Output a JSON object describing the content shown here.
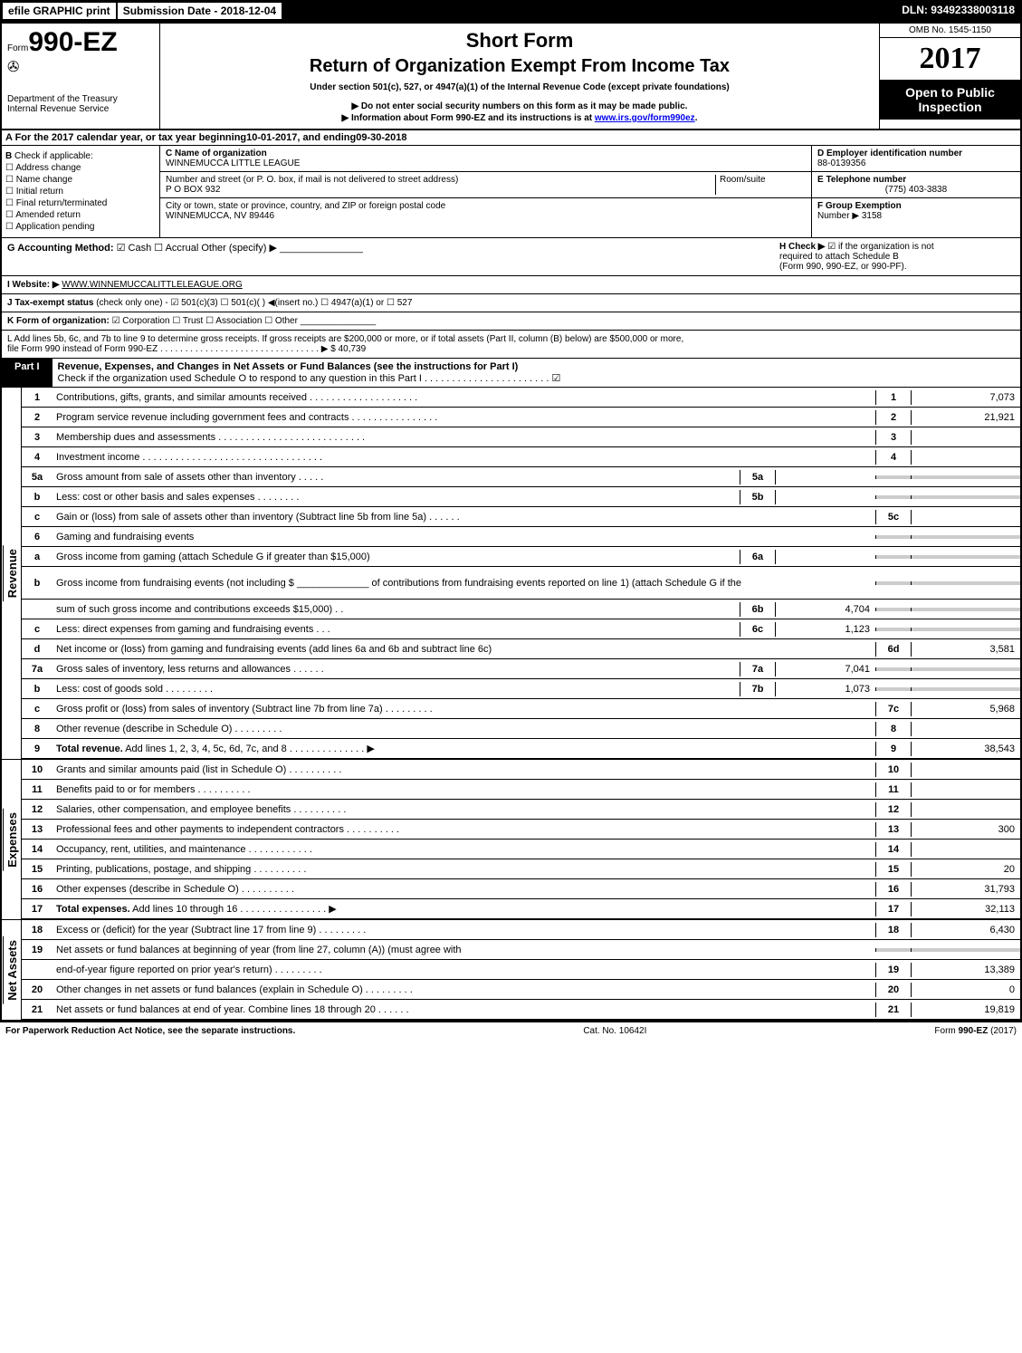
{
  "topbar": {
    "efile": "efile GRAPHIC print",
    "subdate": "Submission Date - 2018-12-04",
    "dln": "DLN: 93492338003118"
  },
  "header": {
    "form_prefix": "Form",
    "form_number": "990-EZ",
    "dept1": "Department of the Treasury",
    "dept2": "Internal Revenue Service",
    "short_form": "Short Form",
    "return_title": "Return of Organization Exempt From Income Tax",
    "under_section": "Under section 501(c), 527, or 4947(a)(1) of the Internal Revenue Code (except private foundations)",
    "notice1": "▶ Do not enter social security numbers on this form as it may be made public.",
    "notice2_prefix": "▶ Information about Form 990-EZ and its instructions is at ",
    "notice2_link": "www.irs.gov/form990ez",
    "omb": "OMB No. 1545-1150",
    "year": "2017",
    "open1": "Open to Public",
    "open2": "Inspection"
  },
  "line_a": {
    "prefix": "A  For the 2017 calendar year, or tax year beginning ",
    "begin": "10-01-2017",
    "mid": ", and ending ",
    "end": "09-30-2018"
  },
  "section_b": {
    "b_label": "B",
    "check_label": "Check if applicable:",
    "addr_change": "Address change",
    "name_change": "Name change",
    "initial": "Initial return",
    "final": "Final return/terminated",
    "amended": "Amended return",
    "pending": "Application pending"
  },
  "section_c": {
    "c_label": "C Name of organization",
    "org_name": "WINNEMUCCA LITTLE LEAGUE",
    "street_label": "Number and street (or P. O. box, if mail is not delivered to street address)",
    "room_label": "Room/suite",
    "street": "P O BOX 932",
    "city_label": "City or town, state or province, country, and ZIP or foreign postal code",
    "city": "WINNEMUCCA, NV  89446"
  },
  "section_def": {
    "d_label": "D Employer identification number",
    "ein": "88-0139356",
    "e_label": "E Telephone number",
    "phone": "(775) 403-3838",
    "f_label": "F Group Exemption",
    "f_number_label": "Number ▶",
    "f_number": "3158"
  },
  "line_g": {
    "g_label": "G Accounting Method:",
    "cash": "Cash",
    "accrual": "Accrual",
    "other": "Other (specify) ▶",
    "h_label": "H  Check ▶",
    "h_text1": "if the organization is not",
    "h_text2": "required to attach Schedule B",
    "h_text3": "(Form 990, 990-EZ, or 990-PF)."
  },
  "line_i": {
    "i_label": "I Website: ▶",
    "website": "WWW.WINNEMUCCALITTLELEAGUE.ORG"
  },
  "line_j": {
    "j_label": "J Tax-exempt status",
    "j_text": "(check only one) - ☑ 501(c)(3)  ☐ 501(c)(  ) ◀(insert no.)  ☐ 4947(a)(1) or  ☐ 527"
  },
  "line_k": {
    "k_label": "K Form of organization:",
    "k_text": "☑ Corporation   ☐ Trust   ☐ Association   ☐ Other"
  },
  "line_l": {
    "l_text1": "L Add lines 5b, 6c, and 7b to line 9 to determine gross receipts. If gross receipts are $200,000 or more, or if total assets (Part II, column (B) below) are $500,000 or more,",
    "l_text2": "file Form 990 instead of Form 990-EZ  . . . . . . . . . . . . . . . . . . . . . . . . . . . . . . . . ▶ $ 40,739"
  },
  "part1": {
    "label": "Part I",
    "title": "Revenue, Expenses, and Changes in Net Assets or Fund Balances (see the instructions for Part I)",
    "check_text": "Check if the organization used Schedule O to respond to any question in this Part I . . . . . . . . . . . . . . . . . . . . . . . ☑"
  },
  "sections": {
    "revenue": "Revenue",
    "expenses": "Expenses",
    "netassets": "Net Assets"
  },
  "lines": [
    {
      "n": "1",
      "desc": "Contributions, gifts, grants, and similar amounts received . . . . . . . . . . . . . . . . . . . .",
      "rn": "1",
      "rv": "7,073"
    },
    {
      "n": "2",
      "desc": "Program service revenue including government fees and contracts . . . . . . . . . . . . . . . .",
      "rn": "2",
      "rv": "21,921"
    },
    {
      "n": "3",
      "desc": "Membership dues and assessments . . . . . . . . . . . . . . . . . . . . . . . . . . .",
      "rn": "3",
      "rv": ""
    },
    {
      "n": "4",
      "desc": "Investment income . . . . . . . . . . . . . . . . . . . . . . . . . . . . . . . . .",
      "rn": "4",
      "rv": ""
    },
    {
      "n": "5a",
      "desc": "Gross amount from sale of assets other than inventory . . . . .",
      "sn": "5a",
      "sv": "",
      "shaded": true
    },
    {
      "n": "b",
      "desc": "Less: cost or other basis and sales expenses . . . . . . . .",
      "sn": "5b",
      "sv": "",
      "shaded": true
    },
    {
      "n": "c",
      "desc": "Gain or (loss) from sale of assets other than inventory (Subtract line 5b from line 5a)        .  .  .  .  .  .",
      "rn": "5c",
      "rv": ""
    },
    {
      "n": "6",
      "desc": "Gaming and fundraising events",
      "shaded": true
    },
    {
      "n": "a",
      "desc": "Gross income from gaming (attach Schedule G if greater than $15,000)",
      "sn": "6a",
      "sv": "",
      "shaded": true
    },
    {
      "n": "b",
      "desc": "Gross income from fundraising events (not including $ _____________ of contributions from fundraising events reported on line 1) (attach Schedule G if the",
      "shaded": true,
      "tall": true
    },
    {
      "n": "",
      "desc": "sum of such gross income and contributions exceeds $15,000)       .  .",
      "sn": "6b",
      "sv": "4,704",
      "shaded": true
    },
    {
      "n": "c",
      "desc": "Less: direct expenses from gaming and fundraising events        .  .  .",
      "sn": "6c",
      "sv": "1,123",
      "shaded": true
    },
    {
      "n": "d",
      "desc": "Net income or (loss) from gaming and fundraising events (add lines 6a and 6b and subtract line 6c)",
      "rn": "6d",
      "rv": "3,581"
    },
    {
      "n": "7a",
      "desc": "Gross sales of inventory, less returns and allowances         .  .  .  .  .  .",
      "sn": "7a",
      "sv": "7,041",
      "shaded": true
    },
    {
      "n": "b",
      "desc": "Less: cost of goods sold                 .  .  .  .  .  .  .  .  .",
      "sn": "7b",
      "sv": "1,073",
      "shaded": true
    },
    {
      "n": "c",
      "desc": "Gross profit or (loss) from sales of inventory (Subtract line 7b from line 7a)        .  .  .  .  .  .  .  .  .",
      "rn": "7c",
      "rv": "5,968"
    },
    {
      "n": "8",
      "desc": "Other revenue (describe in Schedule O)                .  .  .  .  .  .  .  .  .",
      "rn": "8",
      "rv": ""
    },
    {
      "n": "9",
      "desc": "Total revenue. Add lines 1, 2, 3, 4, 5c, 6d, 7c, and 8       .  .  .  .  .  .  .  .  .  .  .  .  .  . ▶",
      "rn": "9",
      "rv": "38,543",
      "bold": true
    }
  ],
  "exp_lines": [
    {
      "n": "10",
      "desc": "Grants and similar amounts paid (list in Schedule O)          .  .  .  .  .  .  .  .  .  .",
      "rn": "10",
      "rv": ""
    },
    {
      "n": "11",
      "desc": "Benefits paid to or for members               .  .  .  .  .  .  .  .  .  .",
      "rn": "11",
      "rv": ""
    },
    {
      "n": "12",
      "desc": "Salaries, other compensation, and employee benefits        .  .  .  .  .  .  .  .  .  .",
      "rn": "12",
      "rv": ""
    },
    {
      "n": "13",
      "desc": "Professional fees and other payments to independent contractors    .  .  .  .  .  .  .  .  .  .",
      "rn": "13",
      "rv": "300"
    },
    {
      "n": "14",
      "desc": "Occupancy, rent, utilities, and maintenance        .  .  .  .  .  .  .  .  .  .  .  .",
      "rn": "14",
      "rv": ""
    },
    {
      "n": "15",
      "desc": "Printing, publications, postage, and shipping          .  .  .  .  .  .  .  .  .  .",
      "rn": "15",
      "rv": "20"
    },
    {
      "n": "16",
      "desc": "Other expenses (describe in Schedule O)            .  .  .  .  .  .  .  .  .  .",
      "rn": "16",
      "rv": "31,793"
    },
    {
      "n": "17",
      "desc": "Total expenses. Add lines 10 through 16       .  .  .  .  .  .  .  .  .  .  .  .  .  .  .  . ▶",
      "rn": "17",
      "rv": "32,113",
      "bold": true
    }
  ],
  "na_lines": [
    {
      "n": "18",
      "desc": "Excess or (deficit) for the year (Subtract line 17 from line 9)        .  .  .  .  .  .  .  .  .",
      "rn": "18",
      "rv": "6,430"
    },
    {
      "n": "19",
      "desc": "Net assets or fund balances at beginning of year (from line 27, column (A)) (must agree with",
      "shaded": true
    },
    {
      "n": "",
      "desc": "end-of-year figure reported on prior year's return)         .  .  .  .  .  .  .  .  .",
      "rn": "19",
      "rv": "13,389"
    },
    {
      "n": "20",
      "desc": "Other changes in net assets or fund balances (explain in Schedule O)    .  .  .  .  .  .  .  .  .",
      "rn": "20",
      "rv": "0"
    },
    {
      "n": "21",
      "desc": "Net assets or fund balances at end of year. Combine lines 18 through 20     .  .  .  .  .  .",
      "rn": "21",
      "rv": "19,819"
    }
  ],
  "footer": {
    "left": "For Paperwork Reduction Act Notice, see the separate instructions.",
    "mid": "Cat. No. 10642I",
    "right": "Form 990-EZ (2017)"
  }
}
